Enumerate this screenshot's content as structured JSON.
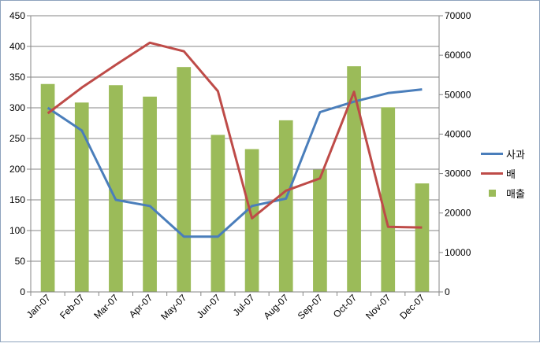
{
  "chart_data": {
    "type": "bar+line",
    "categories": [
      "Jan-07",
      "Feb-07",
      "Mar-07",
      "Apr-07",
      "May-07",
      "Jun-07",
      "Jul-07",
      "Aug-07",
      "Sep-07",
      "Oct-07",
      "Nov-07",
      "Dec-07"
    ],
    "series": [
      {
        "name": "사과",
        "type": "line",
        "axis": "left",
        "color": "#4a7ebb",
        "values": [
          300,
          263,
          150,
          140,
          90,
          90,
          140,
          152,
          293,
          310,
          324,
          330
        ]
      },
      {
        "name": "배",
        "type": "line",
        "axis": "left",
        "color": "#be4b48",
        "values": [
          291,
          333,
          370,
          406,
          392,
          327,
          120,
          165,
          185,
          326,
          106,
          105
        ]
      },
      {
        "name": "매출",
        "type": "bar",
        "axis": "right",
        "color": "#9bbb59",
        "values": [
          52700,
          48000,
          52400,
          49500,
          57000,
          39800,
          36200,
          43500,
          31000,
          57200,
          46800,
          27500
        ]
      }
    ],
    "y_left": {
      "min": 0,
      "max": 450,
      "step": 50
    },
    "y_right": {
      "min": 0,
      "max": 70000,
      "step": 10000
    },
    "grid": true,
    "legend_position": "right"
  }
}
